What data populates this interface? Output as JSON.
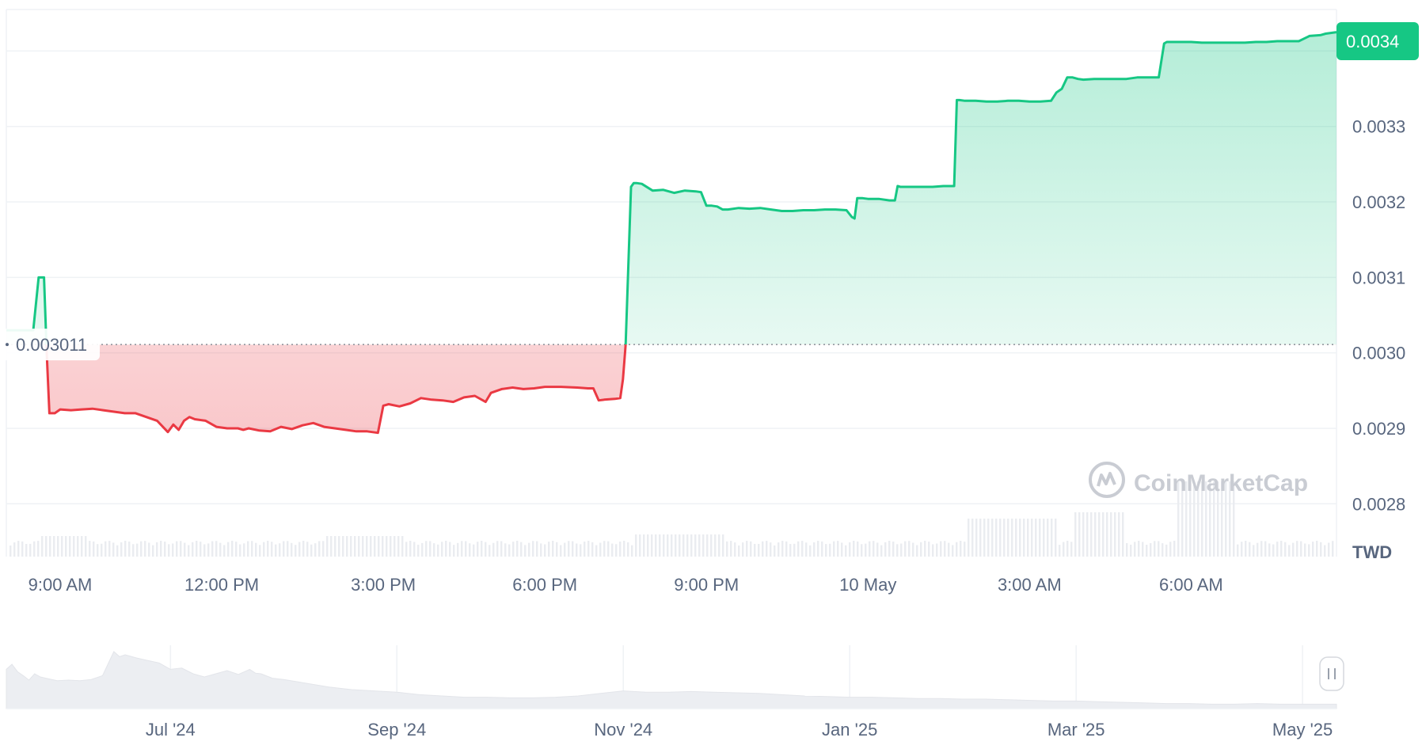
{
  "chart_data": {
    "type": "area",
    "currency": "TWD",
    "watermark": "CoinMarketCap",
    "reference_price": 0.003011,
    "reference_price_label": "0.003011",
    "current_price_label": "0.0034",
    "current_price": 0.003413,
    "y_ticks": [
      {
        "value": 0.0028,
        "label": "0.0028"
      },
      {
        "value": 0.0029,
        "label": "0.0029"
      },
      {
        "value": 0.003,
        "label": "0.0030"
      },
      {
        "value": 0.0031,
        "label": "0.0031"
      },
      {
        "value": 0.0032,
        "label": "0.0032"
      },
      {
        "value": 0.0033,
        "label": "0.0033"
      },
      {
        "value": 0.0034,
        "label": "0.0034"
      }
    ],
    "ylim": [
      0.00273,
      0.003455
    ],
    "x_ticks": [
      "9:00 AM",
      "12:00 PM",
      "3:00 PM",
      "6:00 PM",
      "9:00 PM",
      "10 May",
      "3:00 AM",
      "6:00 AM"
    ],
    "x_tick_positions": [
      1.0,
      4.0,
      7.0,
      10.0,
      13.0,
      16.0,
      19.0,
      22.0
    ],
    "xlim": [
      0.0,
      24.7
    ],
    "series": [
      {
        "x": [
          0.0,
          0.5,
          0.6,
          0.7,
          0.75,
          0.8,
          0.9,
          1.0,
          1.2,
          1.4,
          1.6,
          1.8,
          2.0,
          2.2,
          2.4,
          2.6,
          2.8,
          3.0,
          3.1,
          3.2,
          3.3,
          3.4,
          3.5,
          3.7,
          3.9,
          4.1,
          4.3,
          4.4,
          4.5,
          4.7,
          4.9,
          5.1,
          5.3,
          5.5,
          5.7,
          5.9,
          6.1,
          6.3,
          6.5,
          6.7,
          6.9,
          7.0,
          7.1,
          7.3,
          7.5,
          7.7,
          7.9,
          8.1,
          8.3,
          8.5,
          8.7,
          8.9,
          9.0,
          9.2,
          9.4,
          9.6,
          9.8,
          10.0,
          10.3,
          10.6,
          10.8,
          10.9,
          11.0,
          11.1,
          11.3,
          11.4,
          11.45,
          11.5,
          11.6,
          11.65,
          11.7,
          11.8,
          12.0,
          12.2,
          12.4,
          12.6,
          12.8,
          12.9,
          13.0,
          13.1,
          13.2,
          13.3,
          13.4,
          13.6,
          13.8,
          14.0,
          14.2,
          14.4,
          14.6,
          14.8,
          15.0,
          15.2,
          15.4,
          15.6,
          15.7,
          15.75,
          15.8,
          15.9,
          16.0,
          16.2,
          16.4,
          16.5,
          16.55,
          16.6,
          16.8,
          17.0,
          17.2,
          17.4,
          17.6,
          17.65,
          17.7,
          17.8,
          18.0,
          18.2,
          18.4,
          18.6,
          18.8,
          19.0,
          19.2,
          19.4,
          19.5,
          19.6,
          19.7,
          19.8,
          19.9,
          20.0,
          20.2,
          20.4,
          20.6,
          20.8,
          21.0,
          21.2,
          21.4,
          21.5,
          21.55,
          21.6,
          21.8,
          22.0,
          22.2,
          22.4,
          22.6,
          22.8,
          23.0,
          23.2,
          23.4,
          23.6,
          23.8,
          24.0,
          24.2,
          24.4,
          24.5,
          24.7
        ],
        "y": [
          0.00303,
          0.00303,
          0.0031,
          0.0031,
          0.003,
          0.00292,
          0.00292,
          0.002925,
          0.002924,
          0.002925,
          0.002926,
          0.002924,
          0.002922,
          0.00292,
          0.00292,
          0.002915,
          0.00291,
          0.002895,
          0.002905,
          0.002898,
          0.00291,
          0.002915,
          0.002912,
          0.00291,
          0.002902,
          0.0029,
          0.0029,
          0.002898,
          0.0029,
          0.002897,
          0.002896,
          0.002902,
          0.002899,
          0.002904,
          0.002907,
          0.002902,
          0.0029,
          0.002898,
          0.002896,
          0.002896,
          0.002894,
          0.00293,
          0.002932,
          0.002929,
          0.002933,
          0.00294,
          0.002938,
          0.002937,
          0.002935,
          0.002941,
          0.002943,
          0.002935,
          0.002947,
          0.002952,
          0.002954,
          0.002952,
          0.002953,
          0.002955,
          0.002955,
          0.002954,
          0.002953,
          0.002953,
          0.002937,
          0.002938,
          0.002939,
          0.00294,
          0.002965,
          0.003011,
          0.00322,
          0.003225,
          0.003225,
          0.003224,
          0.003215,
          0.003216,
          0.003212,
          0.003215,
          0.003214,
          0.003213,
          0.003195,
          0.003195,
          0.003194,
          0.00319,
          0.00319,
          0.003192,
          0.003191,
          0.003192,
          0.00319,
          0.003188,
          0.003188,
          0.003189,
          0.003189,
          0.00319,
          0.00319,
          0.003189,
          0.00318,
          0.003178,
          0.003205,
          0.003205,
          0.003204,
          0.003204,
          0.003202,
          0.003202,
          0.003221,
          0.00322,
          0.00322,
          0.00322,
          0.00322,
          0.003221,
          0.003221,
          0.003335,
          0.003335,
          0.003334,
          0.003334,
          0.003333,
          0.003333,
          0.003334,
          0.003334,
          0.003333,
          0.003333,
          0.003334,
          0.003345,
          0.00335,
          0.003365,
          0.003365,
          0.003363,
          0.003362,
          0.003363,
          0.003363,
          0.003363,
          0.003363,
          0.003365,
          0.003365,
          0.003365,
          0.00341,
          0.003412,
          0.003412,
          0.003412,
          0.003412,
          0.003411,
          0.003411,
          0.003411,
          0.003411,
          0.003411,
          0.003412,
          0.003412,
          0.003413,
          0.003413,
          0.003413,
          0.00342,
          0.003421,
          0.003423,
          0.003425
        ]
      }
    ],
    "navigator": {
      "labels": [
        "Jul '24",
        "Sep '24",
        "Nov '24",
        "Jan '25",
        "Mar '25",
        "May '25"
      ],
      "label_positions": [
        2.0,
        4.0,
        6.0,
        8.0,
        10.0,
        12.0
      ],
      "xlim": [
        0.55,
        12.3
      ],
      "x": [
        0.55,
        0.6,
        0.65,
        0.7,
        0.75,
        0.8,
        0.85,
        0.9,
        1.0,
        1.1,
        1.2,
        1.3,
        1.4,
        1.5,
        1.55,
        1.6,
        1.7,
        1.8,
        1.9,
        2.0,
        2.1,
        2.2,
        2.3,
        2.4,
        2.5,
        2.6,
        2.7,
        2.75,
        2.8,
        2.9,
        3.0,
        3.2,
        3.4,
        3.6,
        3.8,
        4.0,
        4.2,
        4.4,
        4.6,
        4.8,
        5.0,
        5.2,
        5.4,
        5.6,
        5.8,
        6.0,
        6.2,
        6.4,
        6.6,
        6.8,
        7.0,
        7.2,
        7.4,
        7.6,
        7.8,
        8.0,
        8.2,
        8.4,
        8.6,
        8.8,
        9.0,
        9.2,
        9.4,
        9.6,
        9.8,
        10.0,
        10.2,
        10.4,
        10.6,
        10.8,
        11.0,
        11.2,
        11.4,
        11.6,
        11.8,
        12.0,
        12.2,
        12.3
      ],
      "y": [
        0.62,
        0.7,
        0.58,
        0.52,
        0.45,
        0.55,
        0.5,
        0.48,
        0.44,
        0.45,
        0.44,
        0.46,
        0.52,
        0.9,
        0.82,
        0.85,
        0.8,
        0.76,
        0.72,
        0.62,
        0.64,
        0.55,
        0.5,
        0.55,
        0.6,
        0.54,
        0.62,
        0.56,
        0.55,
        0.48,
        0.46,
        0.4,
        0.34,
        0.3,
        0.28,
        0.26,
        0.22,
        0.2,
        0.18,
        0.18,
        0.17,
        0.17,
        0.18,
        0.2,
        0.24,
        0.28,
        0.26,
        0.26,
        0.27,
        0.26,
        0.25,
        0.24,
        0.22,
        0.2,
        0.19,
        0.18,
        0.18,
        0.17,
        0.16,
        0.16,
        0.15,
        0.15,
        0.14,
        0.13,
        0.12,
        0.12,
        0.11,
        0.1,
        0.09,
        0.08,
        0.08,
        0.07,
        0.07,
        0.08,
        0.07,
        0.07,
        0.07,
        0.07
      ]
    }
  }
}
